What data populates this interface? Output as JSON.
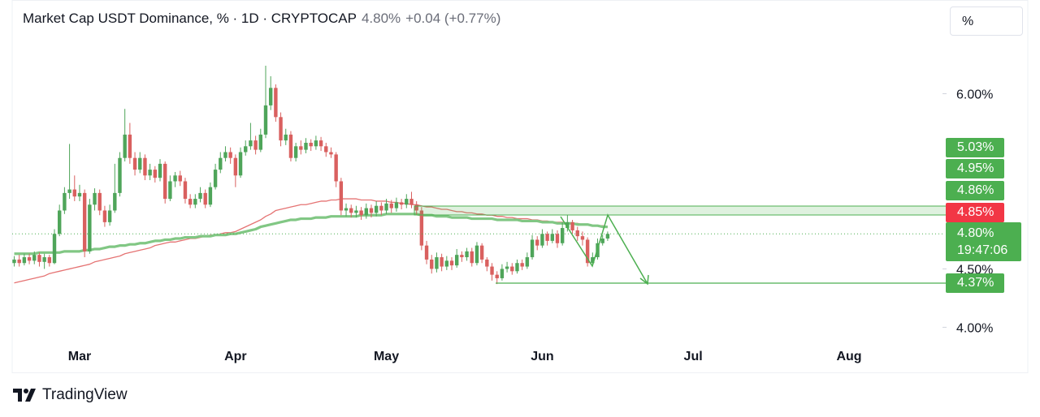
{
  "header": {
    "title": "Market Cap USDT Dominance, % · 1D · CRYPTOCAP",
    "price": "4.80%",
    "change": "+0.04 (+0.77%)",
    "unit_button": "%"
  },
  "chart_data": {
    "type": "candlestick",
    "categories": [
      null,
      null,
      null,
      null,
      null,
      null,
      null,
      null,
      null,
      null,
      null,
      null,
      null,
      "Mar",
      null,
      null,
      null,
      null,
      null,
      null,
      null,
      null,
      null,
      null,
      null,
      null,
      null,
      null,
      null,
      null,
      null,
      null,
      null,
      null,
      null,
      null,
      null,
      null,
      null,
      null,
      null,
      null,
      null,
      null,
      "Apr",
      null,
      null,
      null,
      null,
      null,
      null,
      null,
      null,
      null,
      null,
      null,
      null,
      null,
      null,
      null,
      null,
      null,
      null,
      null,
      null,
      null,
      null,
      null,
      null,
      null,
      null,
      null,
      null,
      null,
      "May",
      null,
      null,
      null,
      null,
      null,
      null,
      null,
      null,
      null,
      null,
      null,
      null,
      null,
      null,
      null,
      null,
      null,
      null,
      null,
      null,
      null,
      null,
      null,
      null,
      null,
      null,
      null,
      null,
      null,
      null,
      "Jun",
      null,
      null,
      null,
      null,
      null,
      null,
      null,
      null,
      null,
      null,
      null,
      null,
      null,
      null,
      null,
      null,
      null,
      null,
      null,
      null,
      null,
      null,
      null,
      null,
      null,
      null,
      null,
      null,
      null,
      "Jul",
      null,
      null,
      null,
      null,
      null,
      null,
      null,
      null,
      null,
      null,
      null,
      null,
      null,
      null,
      null,
      null,
      null,
      null,
      null,
      null,
      null,
      null,
      null,
      null,
      null,
      null,
      null,
      null,
      null,
      null,
      "Aug"
    ],
    "open": [
      4.55,
      4.58,
      4.55,
      4.6,
      4.57,
      4.62,
      4.56,
      4.6,
      4.55,
      4.8,
      5.0,
      5.15,
      5.18,
      5.12,
      5.15,
      4.65,
      5.05,
      5.15,
      5.0,
      4.9,
      5.0,
      5.15,
      5.45,
      5.65,
      5.45,
      5.35,
      5.45,
      5.3,
      5.35,
      5.28,
      5.4,
      5.1,
      5.25,
      5.3,
      5.25,
      5.1,
      5.05,
      5.1,
      5.15,
      5.05,
      5.2,
      5.35,
      5.45,
      5.5,
      5.45,
      5.3,
      5.5,
      5.55,
      5.6,
      5.52,
      5.65,
      5.9,
      6.05,
      5.8,
      5.6,
      5.65,
      5.45,
      5.55,
      5.52,
      5.58,
      5.55,
      5.6,
      5.55,
      5.5,
      5.48,
      5.25,
      5.0,
      5.02,
      4.98,
      5.0,
      4.96,
      5.02,
      4.98,
      5.04,
      5.0,
      5.06,
      5.02,
      5.07,
      5.05,
      5.1,
      5.05,
      5.0,
      4.7,
      4.58,
      4.5,
      4.6,
      4.52,
      4.57,
      4.53,
      4.62,
      4.6,
      4.65,
      4.55,
      4.7,
      4.58,
      4.52,
      4.45,
      4.42,
      4.5,
      4.52,
      4.48,
      4.55,
      4.52,
      4.6,
      4.75,
      4.7,
      4.8,
      4.74,
      4.8,
      4.72,
      4.85,
      4.9,
      4.83,
      4.78,
      4.75,
      4.55,
      4.6,
      4.72,
      4.76,
      null,
      null,
      null,
      null,
      null,
      null,
      null,
      null,
      null,
      null,
      null,
      null,
      null,
      null,
      null,
      null,
      null,
      null,
      null,
      null,
      null,
      null,
      null,
      null,
      null,
      null,
      null,
      null,
      null,
      null,
      null,
      null,
      null,
      null,
      null,
      null,
      null,
      null,
      null,
      null,
      null,
      null,
      null,
      null,
      null,
      null,
      null,
      null
    ],
    "high": [
      4.61,
      4.62,
      4.63,
      4.63,
      4.65,
      4.64,
      4.63,
      4.62,
      4.84,
      5.05,
      5.2,
      5.57,
      5.3,
      5.22,
      5.18,
      5.1,
      5.19,
      5.18,
      5.04,
      5.05,
      5.4,
      5.5,
      5.87,
      5.75,
      5.5,
      5.5,
      5.48,
      5.4,
      5.38,
      5.44,
      5.42,
      5.3,
      5.33,
      5.34,
      5.28,
      5.14,
      5.14,
      5.2,
      5.18,
      5.24,
      5.4,
      5.5,
      5.55,
      5.54,
      5.48,
      5.54,
      5.6,
      5.75,
      5.64,
      5.7,
      6.24,
      6.15,
      6.08,
      5.84,
      5.7,
      5.68,
      5.58,
      5.6,
      5.62,
      5.61,
      5.64,
      5.63,
      5.58,
      5.54,
      5.5,
      5.28,
      5.06,
      5.05,
      5.04,
      5.03,
      5.06,
      5.05,
      5.08,
      5.07,
      5.1,
      5.09,
      5.11,
      5.1,
      5.14,
      5.16,
      5.08,
      5.03,
      4.74,
      4.62,
      4.64,
      4.63,
      4.61,
      4.6,
      4.67,
      4.65,
      4.68,
      4.68,
      4.73,
      4.72,
      4.6,
      4.55,
      4.48,
      4.54,
      4.56,
      4.55,
      4.58,
      4.58,
      4.64,
      4.79,
      4.78,
      4.84,
      4.82,
      4.84,
      4.83,
      4.9,
      4.96,
      4.92,
      4.86,
      4.82,
      4.77,
      4.64,
      4.76,
      4.79,
      4.82,
      null,
      null,
      null,
      null,
      null,
      null,
      null,
      null,
      null,
      null,
      null,
      null,
      null,
      null,
      null,
      null,
      null,
      null,
      null,
      null,
      null,
      null,
      null,
      null,
      null,
      null,
      null,
      null,
      null,
      null,
      null,
      null,
      null,
      null,
      null,
      null,
      null,
      null,
      null,
      null,
      null,
      null,
      null,
      null,
      null,
      null,
      null,
      null
    ],
    "low": [
      4.52,
      4.52,
      4.53,
      4.54,
      4.54,
      4.52,
      4.5,
      4.52,
      4.54,
      4.78,
      4.97,
      5.1,
      5.08,
      5.08,
      4.6,
      4.63,
      5.0,
      4.96,
      4.86,
      4.87,
      4.98,
      5.12,
      5.42,
      5.4,
      5.3,
      5.32,
      5.26,
      5.26,
      5.24,
      5.25,
      5.06,
      5.08,
      5.2,
      5.21,
      5.06,
      5.02,
      5.02,
      5.07,
      5.02,
      5.03,
      5.18,
      5.32,
      5.42,
      5.4,
      5.2,
      5.28,
      5.47,
      5.52,
      5.48,
      5.5,
      5.62,
      5.86,
      5.76,
      5.55,
      5.56,
      5.42,
      5.42,
      5.48,
      5.49,
      5.51,
      5.52,
      5.51,
      5.46,
      5.45,
      5.2,
      4.96,
      4.95,
      4.94,
      4.94,
      4.92,
      4.93,
      4.94,
      4.95,
      4.96,
      4.97,
      4.98,
      4.99,
      5.01,
      5.02,
      5.02,
      4.96,
      4.66,
      4.54,
      4.46,
      4.47,
      4.48,
      4.49,
      4.49,
      4.51,
      4.56,
      4.57,
      4.52,
      4.53,
      4.55,
      4.48,
      4.4,
      4.37,
      4.4,
      4.47,
      4.45,
      4.46,
      4.49,
      4.5,
      4.58,
      4.66,
      4.68,
      4.7,
      4.72,
      4.68,
      4.7,
      4.82,
      4.8,
      4.74,
      4.7,
      4.52,
      4.53,
      4.58,
      4.7,
      4.74,
      null,
      null,
      null,
      null,
      null,
      null,
      null,
      null,
      null,
      null,
      null,
      null,
      null,
      null,
      null,
      null,
      null,
      null,
      null,
      null,
      null,
      null,
      null,
      null,
      null,
      null,
      null,
      null,
      null,
      null,
      null,
      null,
      null,
      null,
      null,
      null,
      null,
      null,
      null,
      null,
      null,
      null,
      null,
      null,
      null,
      null,
      null,
      null
    ],
    "close": [
      4.58,
      4.55,
      4.6,
      4.57,
      4.62,
      4.56,
      4.6,
      4.55,
      4.8,
      5.0,
      5.15,
      5.18,
      5.12,
      5.15,
      4.65,
      5.05,
      5.15,
      5.0,
      4.9,
      5.0,
      5.15,
      5.45,
      5.65,
      5.45,
      5.35,
      5.45,
      5.3,
      5.35,
      5.28,
      5.4,
      5.1,
      5.25,
      5.3,
      5.25,
      5.1,
      5.05,
      5.1,
      5.15,
      5.05,
      5.2,
      5.35,
      5.45,
      5.5,
      5.45,
      5.3,
      5.5,
      5.55,
      5.6,
      5.52,
      5.65,
      5.9,
      6.05,
      5.8,
      5.6,
      5.65,
      5.45,
      5.55,
      5.52,
      5.58,
      5.55,
      5.6,
      5.55,
      5.5,
      5.48,
      5.25,
      5.0,
      5.02,
      4.98,
      5.0,
      4.96,
      5.02,
      4.98,
      5.04,
      5.0,
      5.06,
      5.02,
      5.07,
      5.05,
      5.1,
      5.05,
      5.0,
      4.7,
      4.58,
      4.5,
      4.6,
      4.52,
      4.57,
      4.53,
      4.62,
      4.6,
      4.65,
      4.55,
      4.7,
      4.58,
      4.52,
      4.45,
      4.42,
      4.5,
      4.52,
      4.48,
      4.55,
      4.52,
      4.6,
      4.75,
      4.7,
      4.8,
      4.74,
      4.8,
      4.72,
      4.85,
      4.9,
      4.83,
      4.78,
      4.75,
      4.55,
      4.6,
      4.72,
      4.76,
      4.8,
      null,
      null,
      null,
      null,
      null,
      null,
      null,
      null,
      null,
      null,
      null,
      null,
      null,
      null,
      null,
      null,
      null,
      null,
      null,
      null,
      null,
      null,
      null,
      null,
      null,
      null,
      null,
      null,
      null,
      null,
      null,
      null,
      null,
      null,
      null,
      null,
      null,
      null,
      null,
      null,
      null,
      null,
      null,
      null,
      null,
      null,
      null,
      null
    ],
    "lines": [
      {
        "color": "#e57373",
        "width": 1.3,
        "values": [
          4.38,
          4.39,
          4.4,
          4.41,
          4.42,
          4.43,
          4.44,
          4.46,
          4.47,
          4.48,
          4.49,
          4.5,
          4.51,
          4.52,
          4.53,
          4.54,
          4.56,
          4.57,
          4.58,
          4.59,
          4.6,
          4.61,
          4.63,
          4.64,
          4.65,
          4.66,
          4.67,
          4.68,
          4.7,
          4.71,
          4.72,
          4.73,
          4.73,
          4.74,
          4.75,
          4.76,
          4.76,
          4.77,
          4.78,
          4.79,
          4.79,
          4.8,
          4.81,
          4.81,
          4.82,
          4.84,
          4.86,
          4.88,
          4.9,
          4.92,
          4.95,
          4.97,
          5.0,
          5.01,
          5.02,
          5.03,
          5.04,
          5.05,
          5.05,
          5.06,
          5.07,
          5.08,
          5.08,
          5.09,
          5.09,
          5.1,
          5.1,
          5.1,
          5.1,
          5.09,
          5.09,
          5.09,
          5.08,
          5.08,
          5.08,
          5.07,
          5.07,
          5.06,
          5.06,
          5.05,
          5.05,
          5.04,
          5.03,
          5.03,
          5.02,
          5.01,
          5.01,
          5.0,
          4.99,
          4.99,
          4.98,
          4.98,
          4.97,
          4.97,
          4.96,
          4.96,
          4.95,
          4.95,
          4.94,
          4.94,
          4.93,
          4.93,
          4.93,
          4.92,
          4.92,
          4.91,
          4.91,
          4.9,
          4.9,
          4.9,
          4.89,
          4.89,
          4.89,
          4.88,
          4.88,
          4.87,
          4.87,
          4.87,
          4.86,
          null,
          null,
          null,
          null,
          null,
          null,
          null,
          null,
          null,
          null,
          null,
          null,
          null,
          null,
          null,
          null,
          null,
          null,
          null,
          null,
          null,
          null,
          null,
          null,
          null,
          null,
          null,
          null,
          null,
          null,
          null,
          null,
          null,
          null,
          null,
          null,
          null,
          null,
          null,
          null,
          null,
          null,
          null,
          null,
          null,
          null,
          null,
          null
        ]
      },
      {
        "color": "#81c784",
        "width": 3.2,
        "values": [
          4.63,
          4.63,
          4.63,
          4.63,
          4.63,
          4.64,
          4.64,
          4.64,
          4.64,
          4.64,
          4.65,
          4.65,
          4.65,
          4.65,
          4.66,
          4.66,
          4.67,
          4.67,
          4.68,
          4.69,
          4.69,
          4.7,
          4.7,
          4.71,
          4.71,
          4.72,
          4.72,
          4.73,
          4.74,
          4.74,
          4.75,
          4.75,
          4.76,
          4.76,
          4.77,
          4.77,
          4.77,
          4.78,
          4.78,
          4.78,
          4.79,
          4.79,
          4.79,
          4.8,
          4.8,
          4.81,
          4.82,
          4.83,
          4.84,
          4.86,
          4.87,
          4.88,
          4.89,
          4.9,
          4.91,
          4.92,
          4.92,
          4.93,
          4.93,
          4.93,
          4.94,
          4.94,
          4.94,
          4.95,
          4.95,
          4.95,
          4.95,
          4.95,
          4.95,
          4.96,
          4.96,
          4.96,
          4.96,
          4.96,
          4.97,
          4.97,
          4.97,
          4.97,
          4.97,
          4.97,
          4.97,
          4.96,
          4.96,
          4.96,
          4.95,
          4.95,
          4.95,
          4.94,
          4.94,
          4.94,
          4.94,
          4.93,
          4.93,
          4.93,
          4.93,
          4.93,
          4.92,
          4.92,
          4.92,
          4.92,
          4.92,
          4.91,
          4.91,
          4.91,
          4.91,
          4.9,
          4.9,
          4.9,
          4.89,
          4.89,
          4.89,
          4.89,
          4.88,
          4.88,
          4.88,
          4.87,
          4.87,
          4.86,
          4.86,
          null,
          null,
          null,
          null,
          null,
          null,
          null,
          null,
          null,
          null,
          null,
          null,
          null,
          null,
          null,
          null,
          null,
          null,
          null,
          null,
          null,
          null,
          null,
          null,
          null,
          null,
          null,
          null,
          null,
          null,
          null,
          null,
          null,
          null,
          null,
          null,
          null,
          null,
          null,
          null,
          null,
          null,
          null,
          null,
          null,
          null,
          null,
          null
        ]
      }
    ],
    "up_color": "#4fa55a",
    "down_color": "#d9605f",
    "ylim": [
      3.85,
      6.49
    ],
    "yticks": [
      {
        "value": 4,
        "label": "4.00%"
      },
      {
        "value": 4.5,
        "label": "4.50%"
      },
      {
        "value": 6,
        "label": "6.00%"
      }
    ],
    "grid": false
  },
  "price_labels": [
    "5.03%",
    "4.95%",
    "4.86%",
    "4.85%",
    "4.80%",
    "4.37%"
  ],
  "countdown": "19:47:06",
  "footer": {
    "brand": "TradingView"
  }
}
